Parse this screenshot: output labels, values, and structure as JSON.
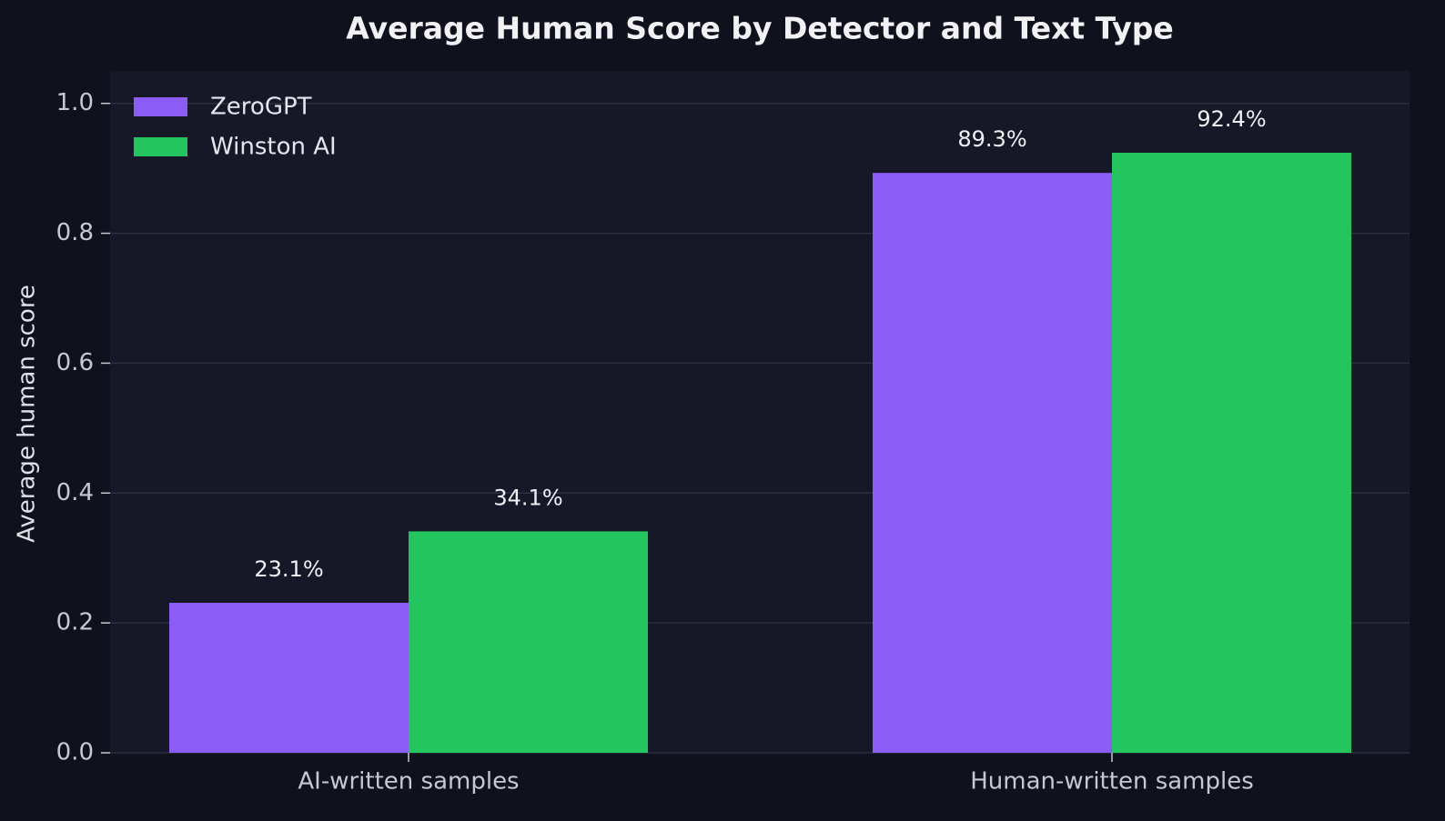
{
  "chart_data": {
    "type": "bar",
    "title": "Average Human Score by Detector and Text Type",
    "ylabel": "Average human score",
    "categories": [
      "AI-written samples",
      "Human-written samples"
    ],
    "series": [
      {
        "name": "ZeroGPT",
        "color": "#8b5cf6",
        "values": [
          0.231,
          0.893
        ],
        "value_labels": [
          "23.1%",
          "89.3%"
        ]
      },
      {
        "name": "Winston AI",
        "color": "#22c55e",
        "values": [
          0.341,
          0.924
        ],
        "value_labels": [
          "34.1%",
          "92.4%"
        ]
      }
    ],
    "ylim": [
      0,
      1.05
    ],
    "yticks": [
      {
        "value": 0,
        "label": "0.0"
      },
      0.2,
      0.4,
      0.6,
      0.8,
      {
        "value": 1,
        "label": "1.0"
      }
    ],
    "grid": true,
    "legend": "upper-left"
  }
}
